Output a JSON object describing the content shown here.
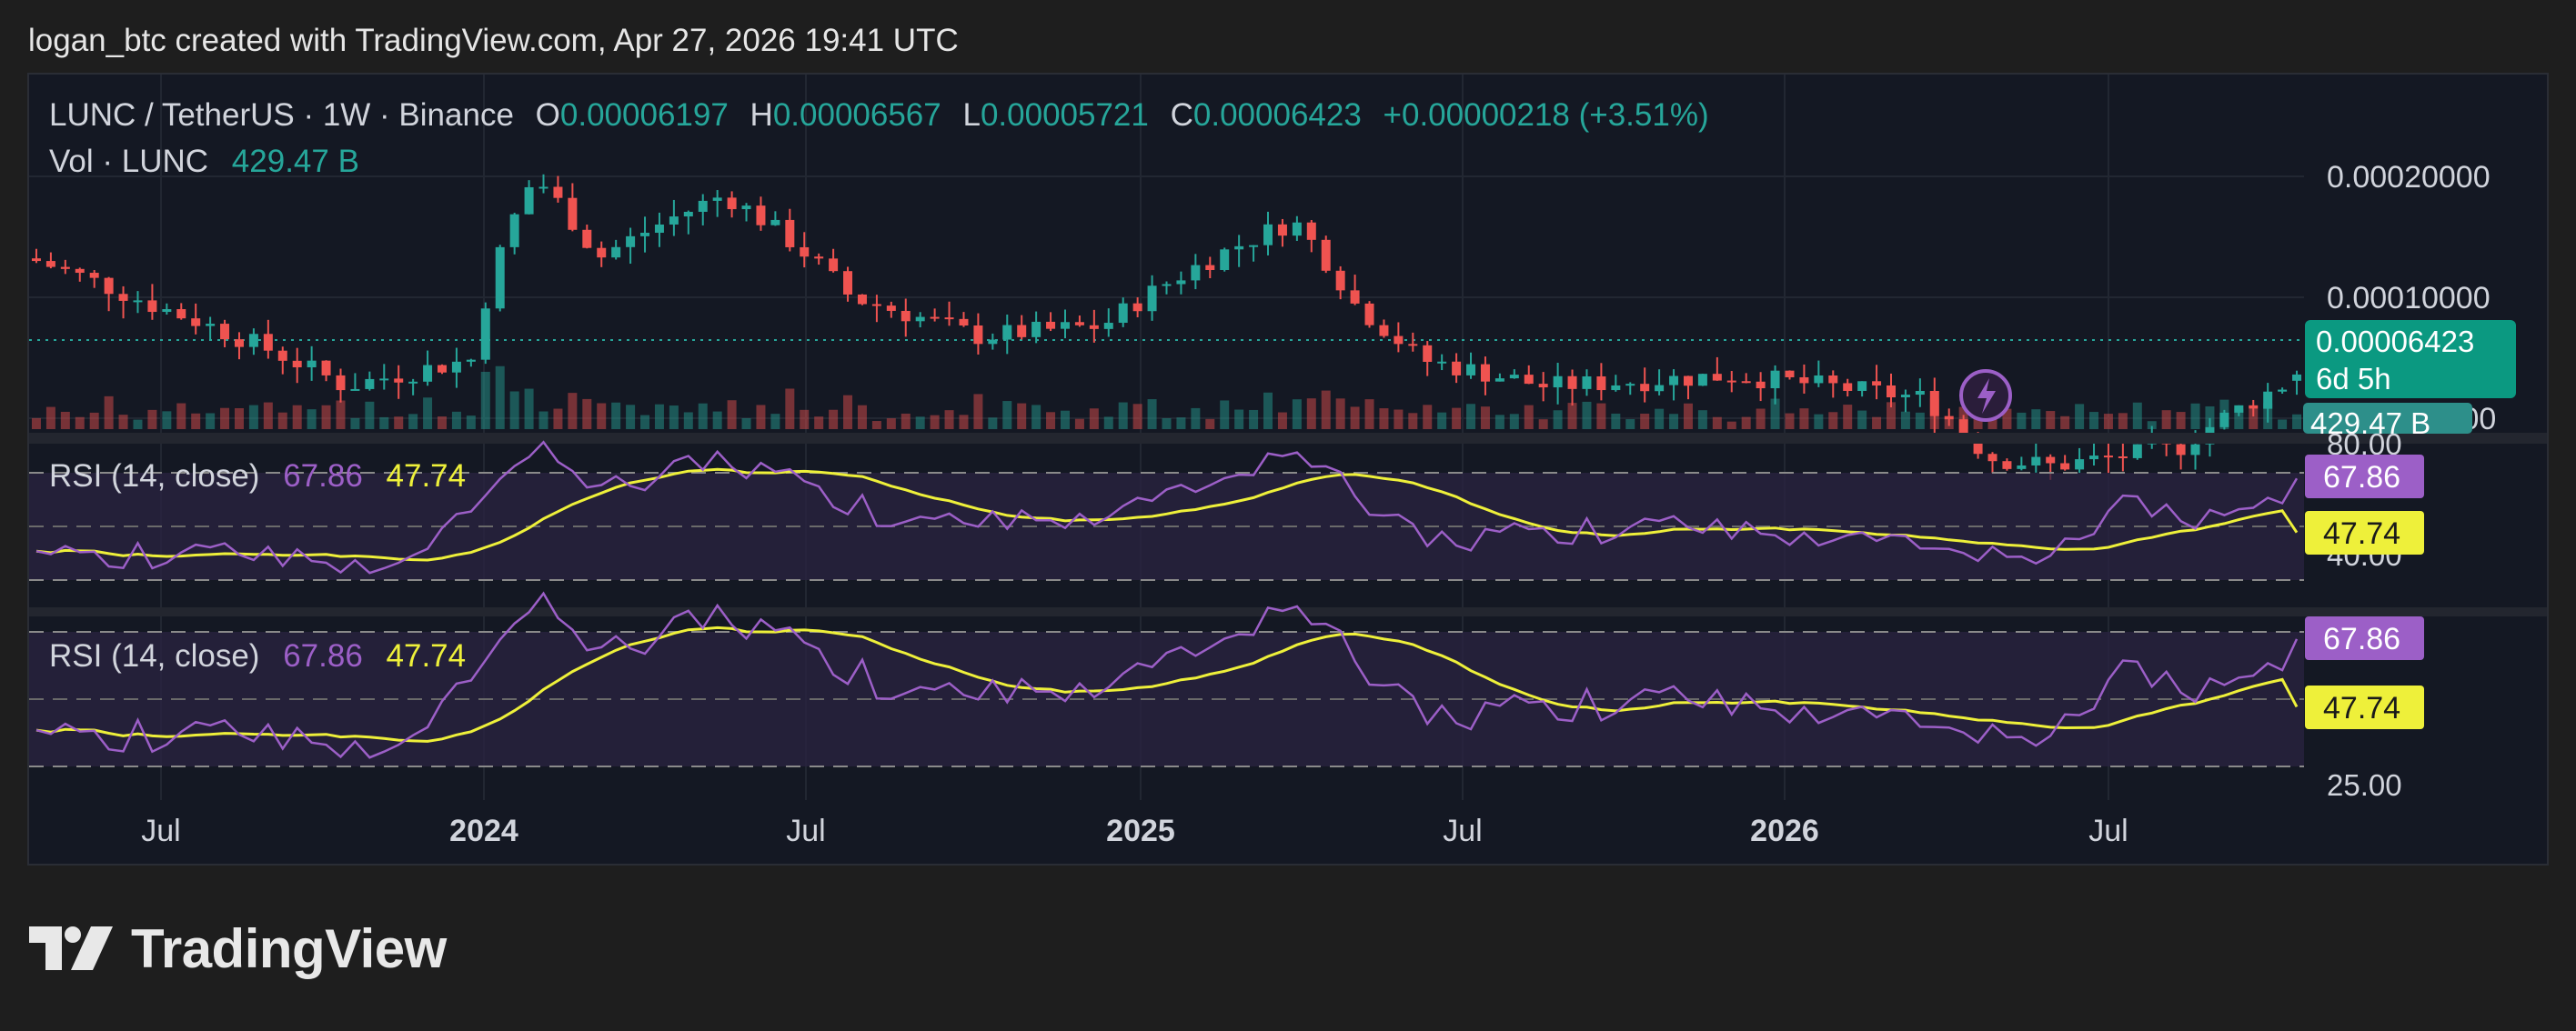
{
  "header": {
    "credit": "logan_btc created with TradingView.com, Apr 27, 2026 19:41 UTC"
  },
  "legend": {
    "symbol": "LUNC / TetherUS · 1W · Binance",
    "o_label": "O",
    "o_value": "0.00006197",
    "h_label": "H",
    "h_value": "0.00006567",
    "l_label": "L",
    "l_value": "0.00005721",
    "c_label": "C",
    "c_value": "0.00006423",
    "change": "+0.00000218 (+3.51%)",
    "vol_label": "Vol · LUNC",
    "vol_value": "429.47 B"
  },
  "rsi_legend": {
    "label": "RSI (14, close)",
    "rsi_value": "67.86",
    "ma_value": "47.74"
  },
  "price_axis": {
    "ticks": [
      "0.00020000",
      "0.00010000",
      ".00"
    ]
  },
  "price_tag": {
    "price": "0.00006423",
    "countdown": "6d 5h",
    "volume": "429.47 B"
  },
  "rsi_axis_1": {
    "top_tick": "80.00",
    "bottom_tick": "40.00",
    "rsi_tag": "67.86",
    "ma_tag": "47.74"
  },
  "rsi_axis_2": {
    "bottom_tick": "25.00",
    "rsi_tag": "67.86",
    "ma_tag": "47.74"
  },
  "time_axis": {
    "labels": [
      "Jul",
      "2024",
      "Jul",
      "2025",
      "Jul",
      "2026",
      "Jul"
    ]
  },
  "brand": {
    "name": "TradingView"
  },
  "colors": {
    "up": "#26a69a",
    "down": "#ef5350",
    "rsi": "#9c5fc7",
    "rsi_ma": "#eef03a",
    "background": "#141823",
    "page": "#1e1e1e"
  },
  "chart_data": {
    "type": "candlestick",
    "symbol": "LUNC / TetherUS",
    "interval": "1W",
    "x_range": [
      "2023-04",
      "2026-04"
    ],
    "y_scale": "log",
    "price_keypoints": [
      {
        "date": "2023-04",
        "price": 0.000125
      },
      {
        "date": "2023-06",
        "price": 9.5e-05
      },
      {
        "date": "2023-09",
        "price": 6e-05
      },
      {
        "date": "2023-11",
        "price": 7e-05
      },
      {
        "date": "2023-12",
        "price": 0.0002
      },
      {
        "date": "2024-01",
        "price": 0.000125
      },
      {
        "date": "2024-03",
        "price": 0.00018
      },
      {
        "date": "2024-05",
        "price": 0.0001
      },
      {
        "date": "2024-07",
        "price": 8e-05
      },
      {
        "date": "2024-09",
        "price": 8.5e-05
      },
      {
        "date": "2024-12",
        "price": 0.000155
      },
      {
        "date": "2025-01",
        "price": 9.5e-05
      },
      {
        "date": "2025-02",
        "price": 7e-05
      },
      {
        "date": "2025-04",
        "price": 6e-05
      },
      {
        "date": "2025-07",
        "price": 6.4e-05
      },
      {
        "date": "2025-10",
        "price": 5.6e-05
      },
      {
        "date": "2025-11",
        "price": 4e-05
      },
      {
        "date": "2025-12",
        "price": 3.8e-05
      },
      {
        "date": "2026-02",
        "price": 4.2e-05
      },
      {
        "date": "2026-04",
        "price": 6.423e-05
      }
    ],
    "last": {
      "open": 6.197e-05,
      "high": 6.567e-05,
      "low": 5.721e-05,
      "close": 6.423e-05,
      "change": 2.18e-06,
      "change_pct": 3.51
    },
    "volume_last": "429.47 B",
    "rsi_keypoints": [
      {
        "date": "2023-04",
        "rsi": 38
      },
      {
        "date": "2023-07",
        "rsi": 40
      },
      {
        "date": "2023-10",
        "rsi": 36
      },
      {
        "date": "2023-12",
        "rsi": 82
      },
      {
        "date": "2024-01",
        "rsi": 62
      },
      {
        "date": "2024-03",
        "rsi": 76
      },
      {
        "date": "2024-06",
        "rsi": 50
      },
      {
        "date": "2024-09",
        "rsi": 55
      },
      {
        "date": "2024-12",
        "rsi": 78
      },
      {
        "date": "2025-02",
        "rsi": 45
      },
      {
        "date": "2025-06",
        "rsi": 50
      },
      {
        "date": "2025-10",
        "rsi": 45
      },
      {
        "date": "2025-12",
        "rsi": 36
      },
      {
        "date": "2026-01",
        "rsi": 58
      },
      {
        "date": "2026-03",
        "rsi": 52
      },
      {
        "date": "2026-04",
        "rsi": 67.86
      }
    ],
    "rsi_ma_last": 47.74,
    "rsi_levels": [
      70,
      50,
      30
    ]
  }
}
